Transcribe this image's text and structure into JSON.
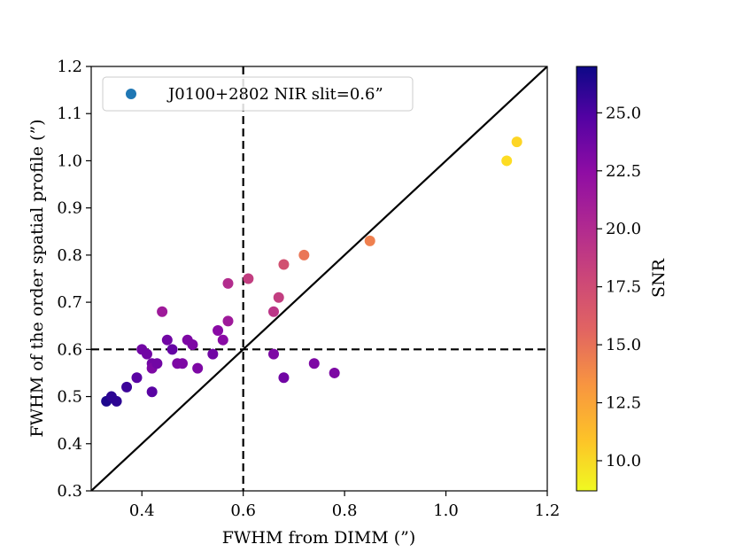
{
  "chart_data": {
    "type": "scatter",
    "title": "",
    "xlabel": "FWHM from DIMM (”)",
    "ylabel": "FWHM of the order spatial profile (”)",
    "xlim": [
      0.3,
      1.2
    ],
    "ylim": [
      0.3,
      1.2
    ],
    "xticks": [
      0.4,
      0.6,
      0.8,
      1.0,
      1.2
    ],
    "yticks": [
      0.3,
      0.4,
      0.5,
      0.6,
      0.7,
      0.8,
      0.9,
      1.0,
      1.1,
      1.2
    ],
    "xtick_labels": [
      "0.4",
      "0.6",
      "0.8",
      "1.0",
      "1.2"
    ],
    "ytick_labels": [
      "0.3",
      "0.4",
      "0.5",
      "0.6",
      "0.7",
      "0.8",
      "0.9",
      "1.0",
      "1.1",
      "1.2"
    ],
    "legend": {
      "label": "J0100+2802 NIR slit=0.6”",
      "marker_color": "#1f77b4",
      "location": "upper-left"
    },
    "colorbar": {
      "label": "SNR",
      "colormap": "plasma",
      "range": [
        8.7,
        27.0
      ],
      "ticks": [
        10.0,
        12.5,
        15.0,
        17.5,
        20.0,
        22.5,
        25.0
      ],
      "tick_labels": [
        "10.0",
        "12.5",
        "15.0",
        "17.5",
        "20.0",
        "22.5",
        "25.0"
      ]
    },
    "reference_lines": [
      {
        "kind": "diagonal",
        "description": "one-to-one line",
        "style": "solid"
      },
      {
        "kind": "vertical",
        "x": 0.6,
        "style": "dashed"
      },
      {
        "kind": "horizontal",
        "y": 0.6,
        "style": "dashed"
      }
    ],
    "points": [
      {
        "x": 0.33,
        "y": 0.49,
        "snr": 26.5
      },
      {
        "x": 0.34,
        "y": 0.5,
        "snr": 26.0
      },
      {
        "x": 0.35,
        "y": 0.49,
        "snr": 26.0
      },
      {
        "x": 0.37,
        "y": 0.52,
        "snr": 25.5
      },
      {
        "x": 0.39,
        "y": 0.54,
        "snr": 24.5
      },
      {
        "x": 0.4,
        "y": 0.6,
        "snr": 23.5
      },
      {
        "x": 0.41,
        "y": 0.59,
        "snr": 23.5
      },
      {
        "x": 0.42,
        "y": 0.57,
        "snr": 23.5
      },
      {
        "x": 0.42,
        "y": 0.56,
        "snr": 23.0
      },
      {
        "x": 0.42,
        "y": 0.51,
        "snr": 24.5
      },
      {
        "x": 0.43,
        "y": 0.57,
        "snr": 23.5
      },
      {
        "x": 0.44,
        "y": 0.68,
        "snr": 21.5
      },
      {
        "x": 0.45,
        "y": 0.62,
        "snr": 23.5
      },
      {
        "x": 0.46,
        "y": 0.6,
        "snr": 24.0
      },
      {
        "x": 0.47,
        "y": 0.57,
        "snr": 23.0
      },
      {
        "x": 0.48,
        "y": 0.57,
        "snr": 23.0
      },
      {
        "x": 0.49,
        "y": 0.62,
        "snr": 23.0
      },
      {
        "x": 0.5,
        "y": 0.61,
        "snr": 23.0
      },
      {
        "x": 0.51,
        "y": 0.56,
        "snr": 23.0
      },
      {
        "x": 0.54,
        "y": 0.59,
        "snr": 23.5
      },
      {
        "x": 0.55,
        "y": 0.64,
        "snr": 22.5
      },
      {
        "x": 0.56,
        "y": 0.62,
        "snr": 22.5
      },
      {
        "x": 0.57,
        "y": 0.66,
        "snr": 21.5
      },
      {
        "x": 0.57,
        "y": 0.74,
        "snr": 20.5
      },
      {
        "x": 0.61,
        "y": 0.75,
        "snr": 19.5
      },
      {
        "x": 0.66,
        "y": 0.68,
        "snr": 20.0
      },
      {
        "x": 0.66,
        "y": 0.59,
        "snr": 23.0
      },
      {
        "x": 0.67,
        "y": 0.71,
        "snr": 19.5
      },
      {
        "x": 0.68,
        "y": 0.78,
        "snr": 18.5
      },
      {
        "x": 0.68,
        "y": 0.54,
        "snr": 23.5
      },
      {
        "x": 0.72,
        "y": 0.8,
        "snr": 16.5
      },
      {
        "x": 0.74,
        "y": 0.57,
        "snr": 23.0
      },
      {
        "x": 0.78,
        "y": 0.55,
        "snr": 23.0
      },
      {
        "x": 0.85,
        "y": 0.83,
        "snr": 16.0
      },
      {
        "x": 1.12,
        "y": 1.0,
        "snr": 11.0
      },
      {
        "x": 1.14,
        "y": 1.04,
        "snr": 11.5
      }
    ]
  }
}
